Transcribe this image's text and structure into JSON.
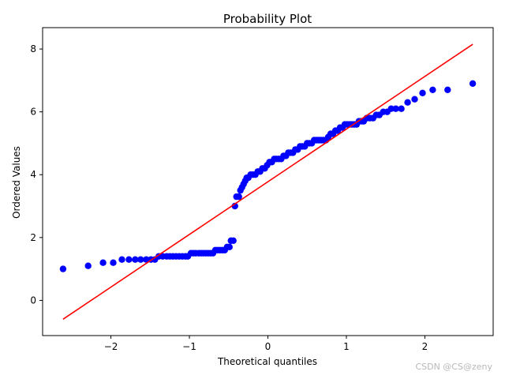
{
  "chart_data": {
    "type": "scatter",
    "title": "Probability Plot",
    "xlabel": "Theoretical quantiles",
    "ylabel": "Ordered Values",
    "xlim": [
      -2.87,
      2.87
    ],
    "ylim": [
      -1.12,
      8.68
    ],
    "xticks": [
      -2,
      -1,
      0,
      1,
      2
    ],
    "yticks": [
      0,
      2,
      4,
      6,
      8
    ],
    "grid": false,
    "series": [
      {
        "kind": "points",
        "color": "#0000ff",
        "points": [
          [
            -2.61,
            1.0
          ],
          [
            -2.29,
            1.1
          ],
          [
            -2.1,
            1.2
          ],
          [
            -1.97,
            1.2
          ],
          [
            -1.86,
            1.3
          ],
          [
            -1.77,
            1.3
          ],
          [
            -1.69,
            1.3
          ],
          [
            -1.62,
            1.3
          ],
          [
            -1.55,
            1.3
          ],
          [
            -1.49,
            1.3
          ],
          [
            -1.44,
            1.3
          ],
          [
            -1.39,
            1.4
          ],
          [
            -1.34,
            1.4
          ],
          [
            -1.29,
            1.4
          ],
          [
            -1.25,
            1.4
          ],
          [
            -1.21,
            1.4
          ],
          [
            -1.17,
            1.4
          ],
          [
            -1.13,
            1.4
          ],
          [
            -1.09,
            1.4
          ],
          [
            -1.05,
            1.4
          ],
          [
            -1.02,
            1.4
          ],
          [
            -0.98,
            1.5
          ],
          [
            -0.95,
            1.5
          ],
          [
            -0.92,
            1.5
          ],
          [
            -0.88,
            1.5
          ],
          [
            -0.85,
            1.5
          ],
          [
            -0.82,
            1.5
          ],
          [
            -0.79,
            1.5
          ],
          [
            -0.76,
            1.5
          ],
          [
            -0.73,
            1.5
          ],
          [
            -0.7,
            1.5
          ],
          [
            -0.67,
            1.6
          ],
          [
            -0.64,
            1.6
          ],
          [
            -0.61,
            1.6
          ],
          [
            -0.58,
            1.6
          ],
          [
            -0.55,
            1.6
          ],
          [
            -0.52,
            1.7
          ],
          [
            -0.49,
            1.7
          ],
          [
            -0.47,
            1.9
          ],
          [
            -0.44,
            1.9
          ],
          [
            -0.42,
            3.0
          ],
          [
            -0.4,
            3.3
          ],
          [
            -0.37,
            3.3
          ],
          [
            -0.35,
            3.5
          ],
          [
            -0.33,
            3.6
          ],
          [
            -0.31,
            3.7
          ],
          [
            -0.29,
            3.8
          ],
          [
            -0.27,
            3.9
          ],
          [
            -0.25,
            3.9
          ],
          [
            -0.22,
            4.0
          ],
          [
            -0.19,
            4.0
          ],
          [
            -0.16,
            4.0
          ],
          [
            -0.13,
            4.1
          ],
          [
            -0.1,
            4.1
          ],
          [
            -0.07,
            4.2
          ],
          [
            -0.04,
            4.2
          ],
          [
            -0.01,
            4.3
          ],
          [
            0.02,
            4.4
          ],
          [
            0.05,
            4.4
          ],
          [
            0.08,
            4.5
          ],
          [
            0.11,
            4.5
          ],
          [
            0.14,
            4.5
          ],
          [
            0.17,
            4.5
          ],
          [
            0.2,
            4.6
          ],
          [
            0.23,
            4.6
          ],
          [
            0.26,
            4.7
          ],
          [
            0.29,
            4.7
          ],
          [
            0.32,
            4.7
          ],
          [
            0.35,
            4.8
          ],
          [
            0.38,
            4.8
          ],
          [
            0.41,
            4.9
          ],
          [
            0.44,
            4.9
          ],
          [
            0.47,
            4.9
          ],
          [
            0.5,
            5.0
          ],
          [
            0.53,
            5.0
          ],
          [
            0.56,
            5.0
          ],
          [
            0.59,
            5.1
          ],
          [
            0.62,
            5.1
          ],
          [
            0.65,
            5.1
          ],
          [
            0.68,
            5.1
          ],
          [
            0.71,
            5.1
          ],
          [
            0.74,
            5.1
          ],
          [
            0.77,
            5.2
          ],
          [
            0.8,
            5.3
          ],
          [
            0.83,
            5.3
          ],
          [
            0.86,
            5.4
          ],
          [
            0.89,
            5.4
          ],
          [
            0.92,
            5.5
          ],
          [
            0.95,
            5.5
          ],
          [
            0.98,
            5.6
          ],
          [
            1.01,
            5.6
          ],
          [
            1.04,
            5.6
          ],
          [
            1.07,
            5.6
          ],
          [
            1.1,
            5.6
          ],
          [
            1.13,
            5.6
          ],
          [
            1.16,
            5.7
          ],
          [
            1.19,
            5.7
          ],
          [
            1.22,
            5.7
          ],
          [
            1.26,
            5.8
          ],
          [
            1.3,
            5.8
          ],
          [
            1.34,
            5.8
          ],
          [
            1.38,
            5.9
          ],
          [
            1.42,
            5.9
          ],
          [
            1.47,
            6.0
          ],
          [
            1.52,
            6.0
          ],
          [
            1.57,
            6.1
          ],
          [
            1.63,
            6.1
          ],
          [
            1.7,
            6.1
          ],
          [
            1.78,
            6.3
          ],
          [
            1.87,
            6.4
          ],
          [
            1.97,
            6.6
          ],
          [
            2.1,
            6.7
          ],
          [
            2.29,
            6.7
          ],
          [
            2.61,
            6.9
          ]
        ]
      },
      {
        "kind": "fit-line",
        "color": "#ff0000",
        "points": [
          [
            -2.61,
            -0.6
          ],
          [
            2.61,
            8.15
          ]
        ]
      }
    ]
  },
  "watermark": "CSDN @CS@zeny"
}
